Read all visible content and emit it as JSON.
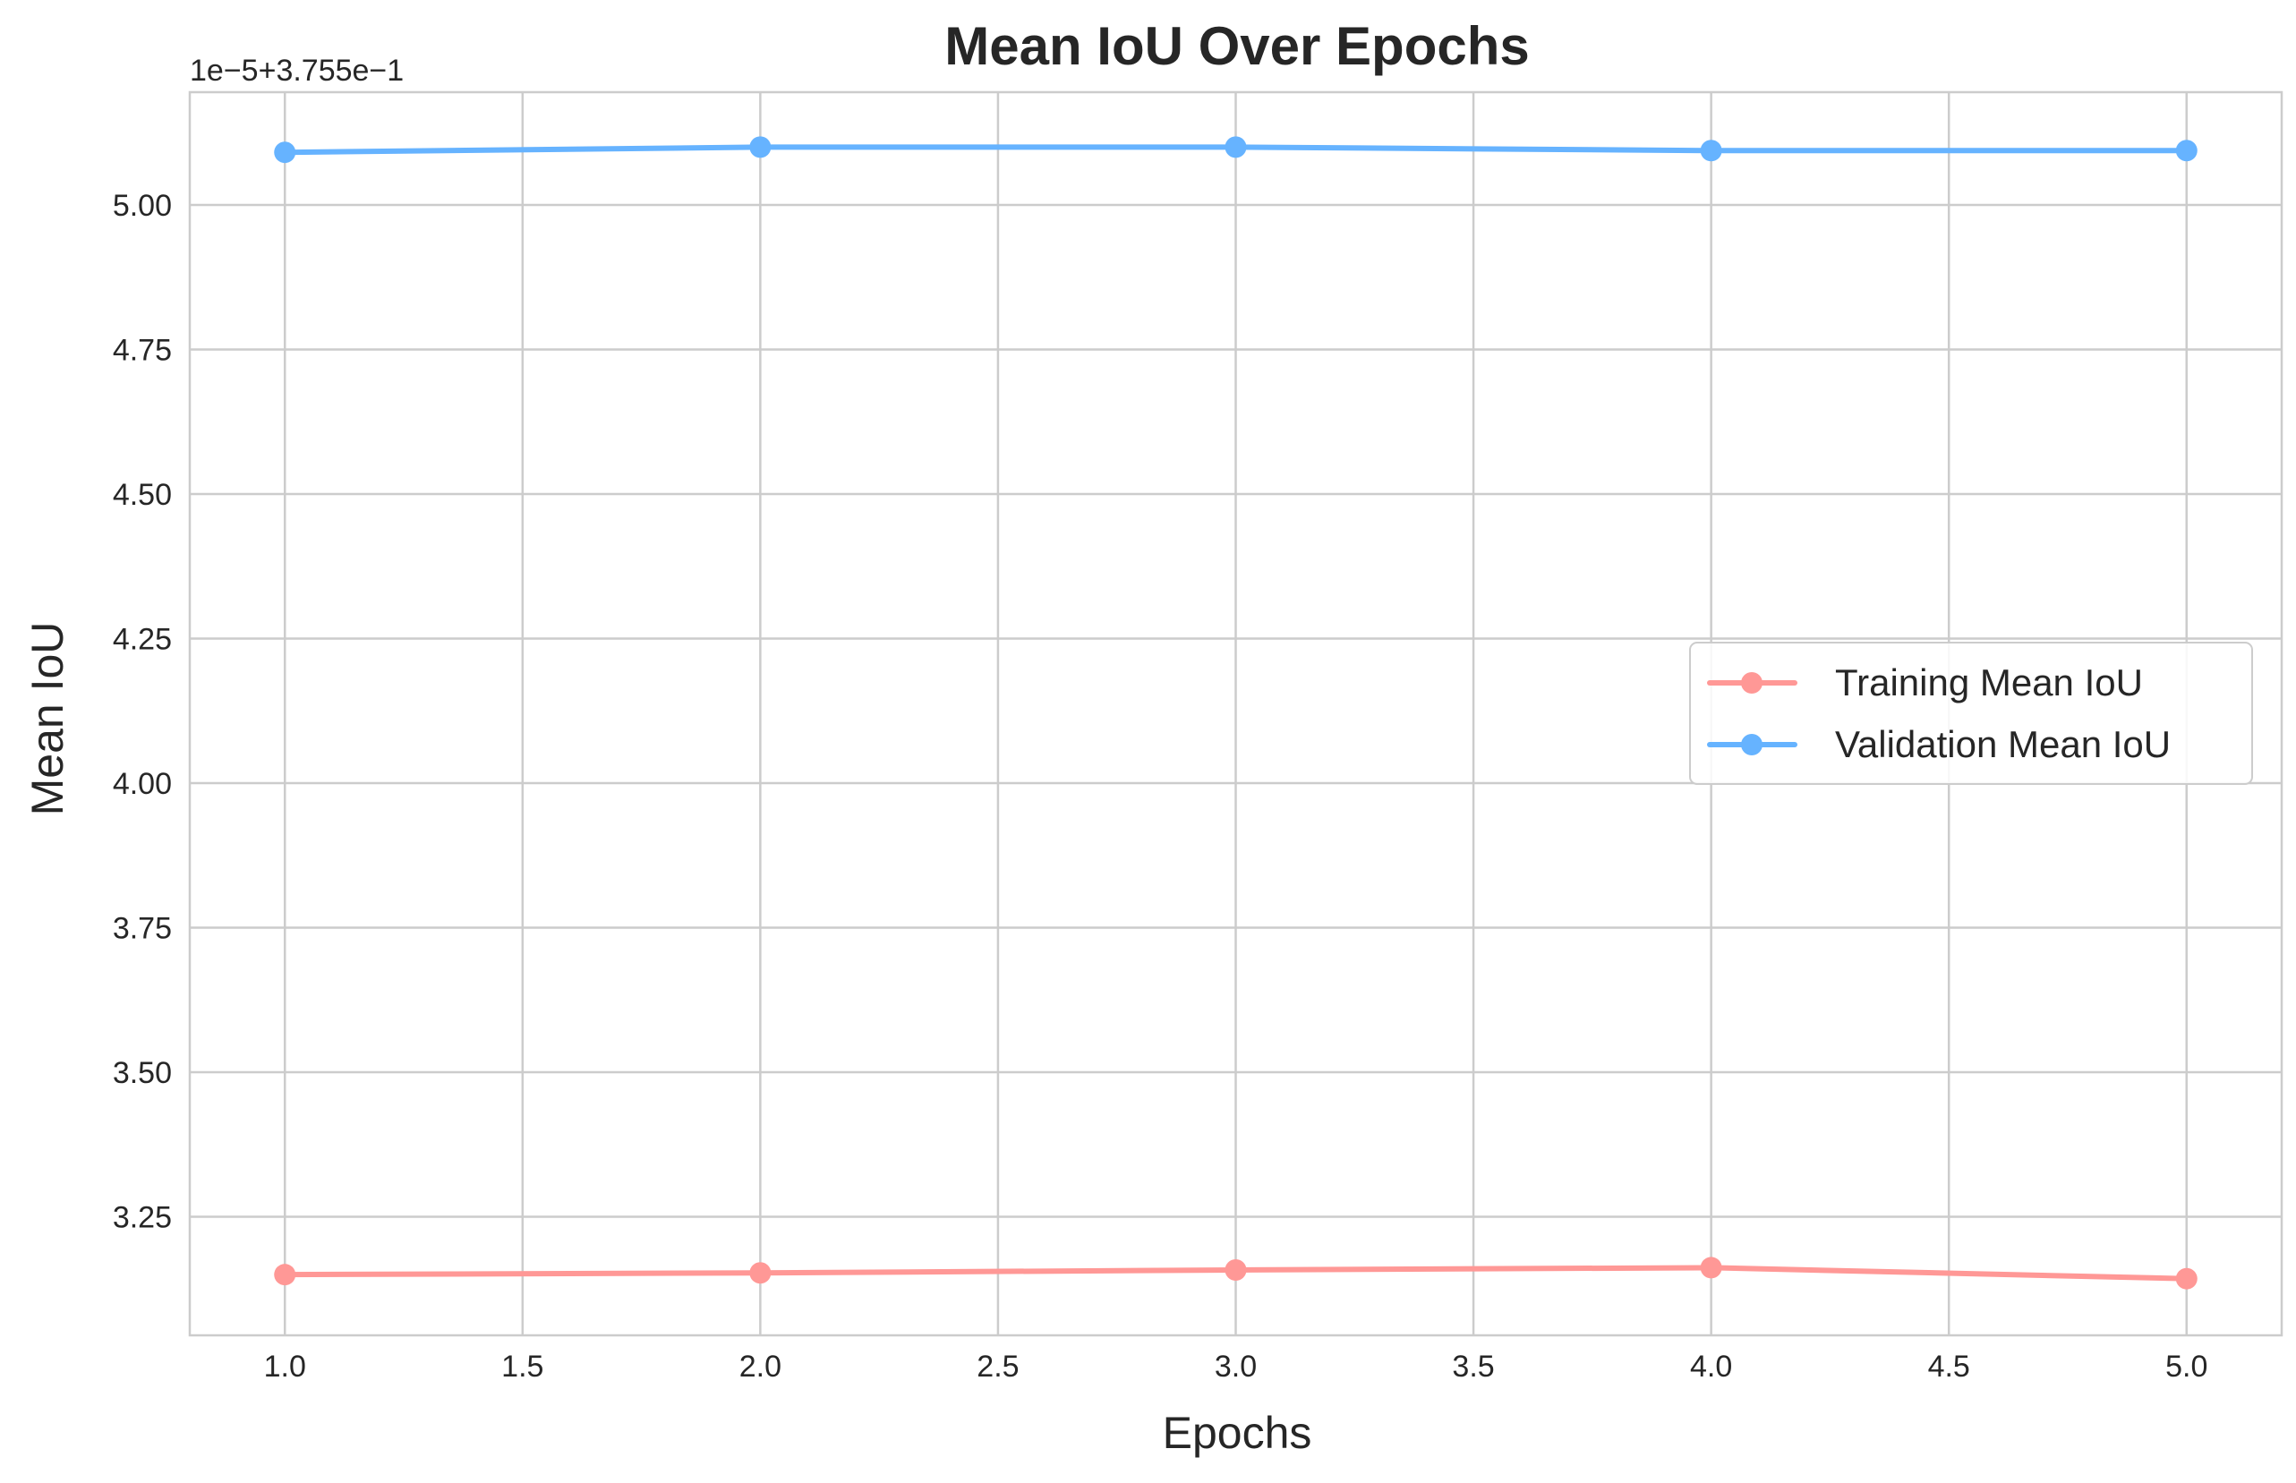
{
  "chart_data": {
    "type": "line",
    "title": "Mean IoU Over Epochs",
    "xlabel": "Epochs",
    "ylabel": "Mean IoU",
    "y_offset_text": "1e−5+3.755e−1",
    "x_ticks": [
      "1.0",
      "1.5",
      "2.0",
      "2.5",
      "3.0",
      "3.5",
      "4.0",
      "4.5",
      "5.0"
    ],
    "y_ticks": [
      "3.25",
      "3.50",
      "3.75",
      "4.00",
      "4.25",
      "4.50",
      "4.75",
      "5.00"
    ],
    "xlim": [
      0.8,
      5.2
    ],
    "ylim": [
      3.045,
      5.195
    ],
    "grid": true,
    "legend_position": "center-right",
    "x": [
      1,
      2,
      3,
      4,
      5
    ],
    "series": [
      {
        "name": "Training Mean IoU",
        "color": "#ff9896",
        "values": [
          3.15,
          3.153,
          3.158,
          3.162,
          3.143
        ]
      },
      {
        "name": "Validation Mean IoU",
        "color": "#66b3ff",
        "values": [
          5.091,
          5.1,
          5.1,
          5.094,
          5.094
        ]
      }
    ]
  }
}
